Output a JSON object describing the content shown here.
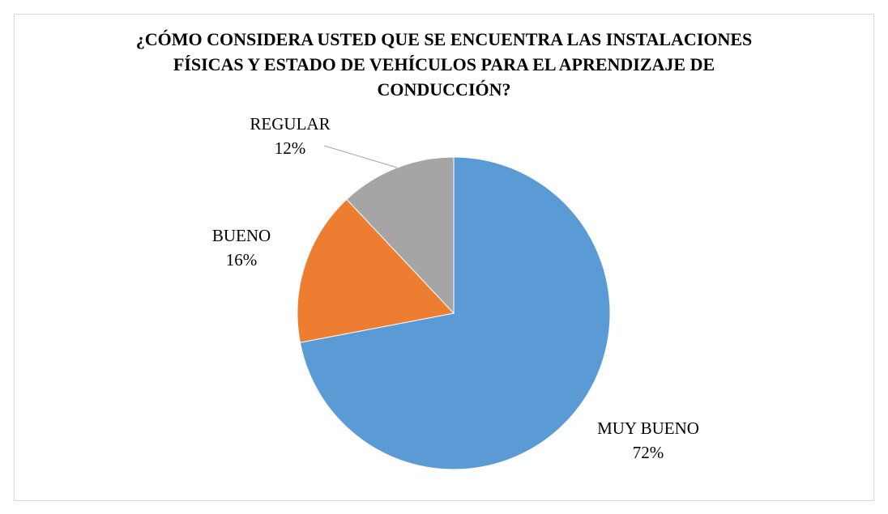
{
  "chart_data": {
    "type": "pie",
    "title": "¿CÓMO CONSIDERA USTED QUE SE ENCUENTRA LAS INSTALACIONES FÍSICAS Y ESTADO DE VEHÍCULOS PARA EL APRENDIZAJE DE CONDUCCIÓN?",
    "categories": [
      "MUY BUENO",
      "BUENO",
      "REGULAR"
    ],
    "values": [
      72,
      16,
      12
    ],
    "value_labels": [
      "72%",
      "16%",
      "12%"
    ],
    "colors": [
      "#5b9bd5",
      "#ed7d31",
      "#a5a5a5"
    ]
  }
}
